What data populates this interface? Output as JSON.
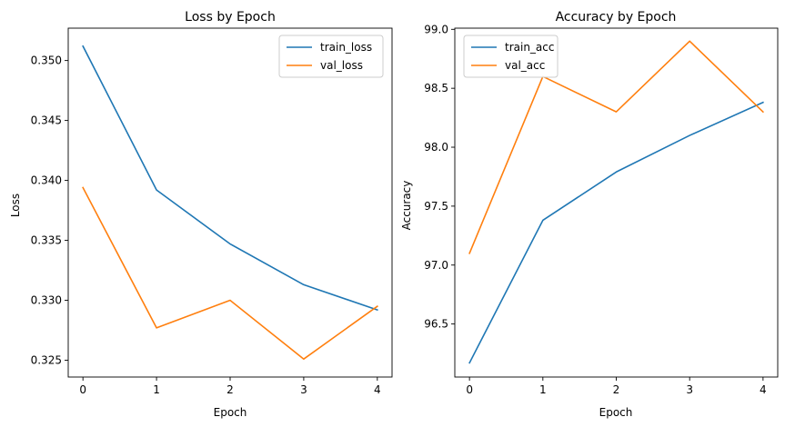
{
  "chart_data": [
    {
      "type": "line",
      "title": "Loss by Epoch",
      "xlabel": "Epoch",
      "ylabel": "Loss",
      "x": [
        0,
        1,
        2,
        3,
        4
      ],
      "xlim": [
        -0.2,
        4.2
      ],
      "ylim": [
        0.3236,
        0.3527
      ],
      "xticks": [
        0,
        1,
        2,
        3,
        4
      ],
      "yticks": [
        0.325,
        0.33,
        0.335,
        0.34,
        0.345,
        0.35
      ],
      "ytick_labels": [
        "0.325",
        "0.330",
        "0.335",
        "0.340",
        "0.345",
        "0.350"
      ],
      "grid": false,
      "legend_position": "top-right",
      "series": [
        {
          "name": "train_loss",
          "color": "#1f77b4",
          "values": [
            0.3512,
            0.3392,
            0.3347,
            0.3313,
            0.3292
          ]
        },
        {
          "name": "val_loss",
          "color": "#ff7f0e",
          "values": [
            0.3394,
            0.3277,
            0.33,
            0.3251,
            0.3295
          ]
        }
      ]
    },
    {
      "type": "line",
      "title": "Accuracy by Epoch",
      "xlabel": "Epoch",
      "ylabel": "Accuracy",
      "x": [
        0,
        1,
        2,
        3,
        4
      ],
      "xlim": [
        -0.2,
        4.2
      ],
      "ylim": [
        96.05,
        99.01
      ],
      "xticks": [
        0,
        1,
        2,
        3,
        4
      ],
      "yticks": [
        96.5,
        97.0,
        97.5,
        98.0,
        98.5,
        99.0
      ],
      "ytick_labels": [
        "96.5",
        "97.0",
        "97.5",
        "98.0",
        "98.5",
        "99.0"
      ],
      "grid": false,
      "legend_position": "top-left",
      "series": [
        {
          "name": "train_acc",
          "color": "#1f77b4",
          "values": [
            96.17,
            97.38,
            97.79,
            98.1,
            98.38
          ]
        },
        {
          "name": "val_acc",
          "color": "#ff7f0e",
          "values": [
            97.1,
            98.6,
            98.3,
            98.9,
            98.3
          ]
        }
      ]
    }
  ]
}
